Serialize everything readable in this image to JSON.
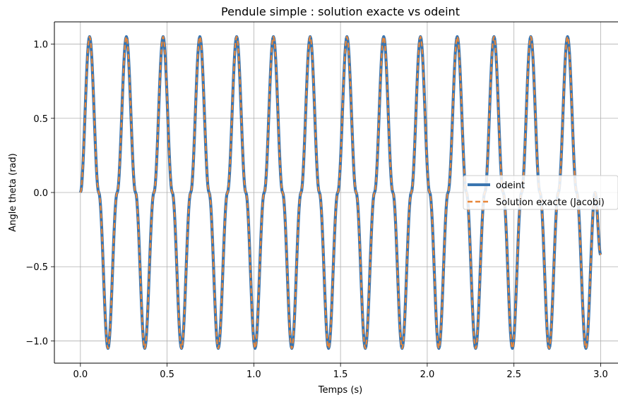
{
  "chart_data": {
    "type": "line",
    "title": "Pendule simple : solution exacte vs odeint",
    "xlabel": "Temps (s)",
    "ylabel": "Angle theta (rad)",
    "xlim": [
      -0.15,
      3.1
    ],
    "ylim": [
      -1.15,
      1.15
    ],
    "xticks": [
      0.0,
      0.5,
      1.0,
      1.5,
      2.0,
      2.5,
      3.0
    ],
    "xtick_labels": [
      "0.0",
      "0.5",
      "1.0",
      "1.5",
      "2.0",
      "2.5",
      "3.0"
    ],
    "yticks": [
      1.0,
      0.5,
      0.0,
      -0.5,
      -1.0
    ],
    "ytick_labels": [
      "1.0",
      "0.5",
      "0.0",
      "−0.5",
      "−1.0"
    ],
    "grid": true,
    "legend_position": "center-right",
    "series": [
      {
        "name": "odeint",
        "color": "#3a75b0",
        "style": "solid",
        "x": [
          0.0,
          0.053,
          0.106,
          0.159,
          0.212,
          0.265,
          0.318,
          0.371,
          0.424,
          0.477,
          0.53,
          0.583,
          0.636,
          0.689,
          0.742,
          0.795,
          0.848,
          0.901,
          0.954,
          1.007,
          1.06,
          1.113,
          1.166,
          1.219,
          1.272,
          1.325,
          1.378,
          1.431,
          1.484,
          1.537,
          1.59,
          1.643,
          1.696,
          1.749,
          1.802,
          1.855,
          1.908,
          1.961,
          2.014,
          2.067,
          2.12,
          2.173,
          2.226,
          2.279,
          2.332,
          2.385,
          2.438,
          2.491,
          2.544,
          2.597,
          2.65,
          2.703,
          2.756,
          2.809,
          2.862,
          2.915,
          2.968,
          3.0
        ],
        "y": [
          0.0,
          1.05,
          0.0,
          -1.05,
          0.0,
          1.05,
          0.0,
          -1.05,
          0.0,
          1.05,
          0.0,
          -1.05,
          0.0,
          1.05,
          0.0,
          -1.05,
          0.0,
          1.05,
          0.0,
          -1.05,
          0.0,
          1.05,
          0.0,
          -1.05,
          0.0,
          1.05,
          0.0,
          -1.05,
          0.0,
          1.05,
          0.0,
          -1.05,
          0.0,
          1.05,
          0.0,
          -1.05,
          0.0,
          1.05,
          0.0,
          -1.05,
          0.0,
          1.05,
          0.0,
          -1.05,
          0.0,
          1.05,
          0.0,
          -1.05,
          0.0,
          1.05,
          0.0,
          -1.05,
          0.0,
          1.05,
          0.0,
          -1.05,
          0.0,
          -0.42
        ]
      },
      {
        "name": "Solution exacte (Jacobi)",
        "color": "#e8873a",
        "style": "dashed",
        "x": [
          0.0,
          0.053,
          0.106,
          0.159,
          0.212,
          0.265,
          0.318,
          0.371,
          0.424,
          0.477,
          0.53,
          0.583,
          0.636,
          0.689,
          0.742,
          0.795,
          0.848,
          0.901,
          0.954,
          1.007,
          1.06,
          1.113,
          1.166,
          1.219,
          1.272,
          1.325,
          1.378,
          1.431,
          1.484,
          1.537,
          1.59,
          1.643,
          1.696,
          1.749,
          1.802,
          1.855,
          1.908,
          1.961,
          2.014,
          2.067,
          2.12,
          2.173,
          2.226,
          2.279,
          2.332,
          2.385,
          2.438,
          2.491,
          2.544,
          2.597,
          2.65,
          2.703,
          2.756,
          2.809,
          2.862,
          2.915,
          2.968,
          3.0
        ],
        "y": [
          0.0,
          1.05,
          0.0,
          -1.05,
          0.0,
          1.05,
          0.0,
          -1.05,
          0.0,
          1.05,
          0.0,
          -1.05,
          0.0,
          1.05,
          0.0,
          -1.05,
          0.0,
          1.05,
          0.0,
          -1.05,
          0.0,
          1.05,
          0.0,
          -1.05,
          0.0,
          1.05,
          0.0,
          -1.05,
          0.0,
          1.05,
          0.0,
          -1.05,
          0.0,
          1.05,
          0.0,
          -1.05,
          0.0,
          1.05,
          0.0,
          -1.05,
          0.0,
          1.05,
          0.0,
          -1.05,
          0.0,
          1.05,
          0.0,
          -1.05,
          0.0,
          1.05,
          0.0,
          -1.05,
          0.0,
          1.05,
          0.0,
          -1.05,
          0.0,
          -0.42
        ]
      }
    ]
  }
}
